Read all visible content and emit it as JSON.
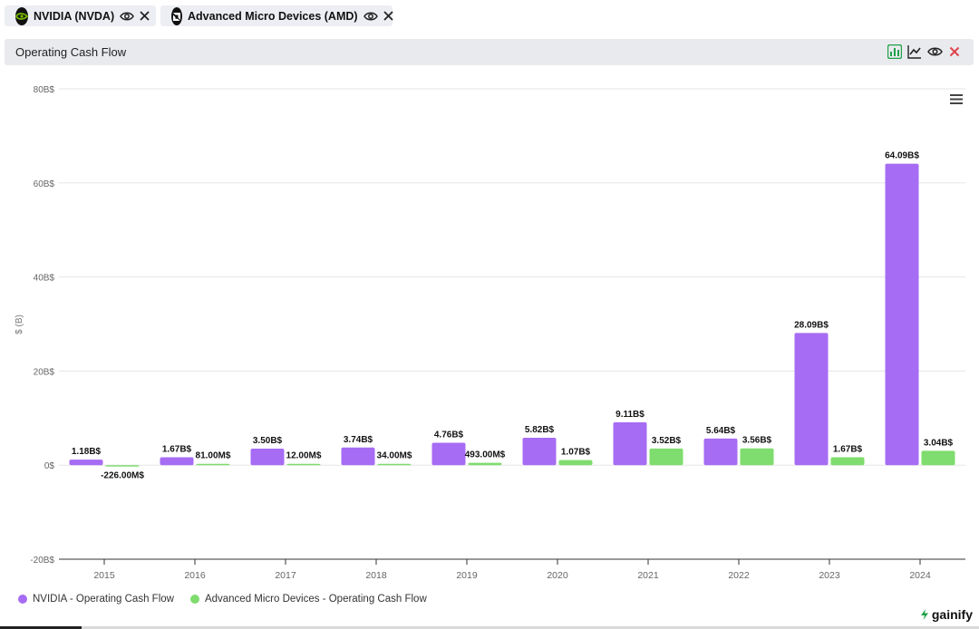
{
  "tabs": [
    {
      "label": "NVIDIA (NVDA)",
      "logo_icon": "nvidia-logo-icon"
    },
    {
      "label": "Advanced Micro Devices (AMD)",
      "logo_icon": "amd-logo-icon"
    }
  ],
  "panel": {
    "title": "Operating Cash Flow",
    "tools": [
      "bar-chart-icon",
      "line-chart-icon",
      "eye-icon",
      "close-icon"
    ]
  },
  "colors": {
    "nvda": "#a66cf3",
    "amd": "#7fdc6e",
    "accent_green": "#1ea34a",
    "close_red": "#e0444d"
  },
  "chart_data": {
    "type": "bar",
    "categories": [
      "2015",
      "2016",
      "2017",
      "2018",
      "2019",
      "2020",
      "2021",
      "2022",
      "2023",
      "2024"
    ],
    "series": [
      {
        "name": "NVIDIA - Operating Cash Flow",
        "values": [
          1.18,
          1.67,
          3.5,
          3.74,
          4.76,
          5.82,
          9.11,
          5.64,
          28.09,
          64.09
        ],
        "labels": [
          "1.18B$",
          "1.67B$",
          "3.50B$",
          "3.74B$",
          "4.76B$",
          "5.82B$",
          "9.11B$",
          "5.64B$",
          "28.09B$",
          "64.09B$"
        ]
      },
      {
        "name": "Advanced Micro Devices - Operating Cash Flow",
        "values": [
          -0.226,
          0.081,
          0.012,
          0.034,
          0.493,
          1.07,
          3.52,
          3.56,
          1.67,
          3.04
        ],
        "labels": [
          "-226.00M$",
          "81.00M$",
          "12.00M$",
          "34.00M$",
          "493.00M$",
          "1.07B$",
          "3.52B$",
          "3.56B$",
          "1.67B$",
          "3.04B$"
        ]
      }
    ],
    "ylabel": "$ (B)",
    "ylim": [
      -20,
      80
    ],
    "yticks": [
      -20,
      0,
      20,
      40,
      60,
      80
    ],
    "ytick_labels": [
      "-20B$",
      "0$",
      "20B$",
      "40B$",
      "60B$",
      "80B$"
    ],
    "grid": true,
    "legend": "bottom-left"
  },
  "chart_menu_icon": "hamburger-menu-icon",
  "brand": {
    "name": "gainify"
  }
}
